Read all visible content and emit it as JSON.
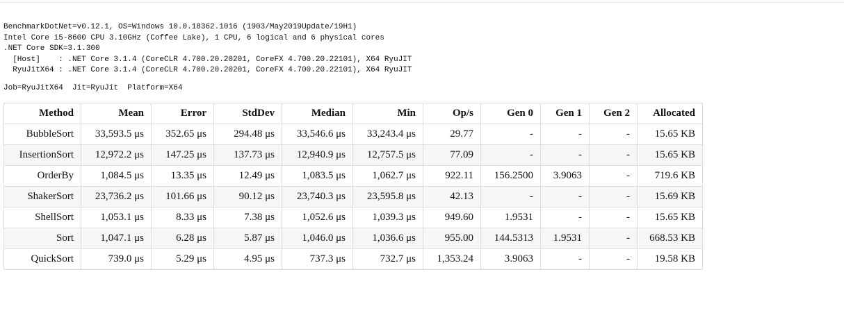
{
  "environment": {
    "lines": [
      "BenchmarkDotNet=v0.12.1, OS=Windows 10.0.18362.1016 (1903/May2019Update/19H1)",
      "Intel Core i5-8600 CPU 3.10GHz (Coffee Lake), 1 CPU, 6 logical and 6 physical cores",
      ".NET Core SDK=3.1.300",
      "  [Host]    : .NET Core 3.1.4 (CoreCLR 4.700.20.20201, CoreFX 4.700.20.22101), X64 RyuJIT",
      "  RyuJitX64 : .NET Core 3.1.4 (CoreCLR 4.700.20.20201, CoreFX 4.700.20.22101), X64 RyuJIT"
    ]
  },
  "job": "Job=RyuJitX64  Jit=RyuJit  Platform=X64",
  "table": {
    "headers": [
      "Method",
      "Mean",
      "Error",
      "StdDev",
      "Median",
      "Min",
      "Op/s",
      "Gen 0",
      "Gen 1",
      "Gen 2",
      "Allocated"
    ],
    "rows": [
      [
        "BubbleSort",
        "33,593.5 μs",
        "352.65 μs",
        "294.48 μs",
        "33,546.6 μs",
        "33,243.4 μs",
        "29.77",
        "-",
        "-",
        "-",
        "15.65 KB"
      ],
      [
        "InsertionSort",
        "12,972.2 μs",
        "147.25 μs",
        "137.73 μs",
        "12,940.9 μs",
        "12,757.5 μs",
        "77.09",
        "-",
        "-",
        "-",
        "15.65 KB"
      ],
      [
        "OrderBy",
        "1,084.5 μs",
        "13.35 μs",
        "12.49 μs",
        "1,083.5 μs",
        "1,062.7 μs",
        "922.11",
        "156.2500",
        "3.9063",
        "-",
        "719.6 KB"
      ],
      [
        "ShakerSort",
        "23,736.2 μs",
        "101.66 μs",
        "90.12 μs",
        "23,740.3 μs",
        "23,595.8 μs",
        "42.13",
        "-",
        "-",
        "-",
        "15.69 KB"
      ],
      [
        "ShellSort",
        "1,053.1 μs",
        "8.33 μs",
        "7.38 μs",
        "1,052.6 μs",
        "1,039.3 μs",
        "949.60",
        "1.9531",
        "-",
        "-",
        "15.65 KB"
      ],
      [
        "Sort",
        "1,047.1 μs",
        "6.28 μs",
        "5.87 μs",
        "1,046.0 μs",
        "1,036.6 μs",
        "955.00",
        "144.5313",
        "1.9531",
        "-",
        "668.53 KB"
      ],
      [
        "QuickSort",
        "739.0 μs",
        "5.29 μs",
        "4.95 μs",
        "737.3 μs",
        "732.7 μs",
        "1,353.24",
        "3.9063",
        "-",
        "-",
        "19.58 KB"
      ]
    ]
  }
}
